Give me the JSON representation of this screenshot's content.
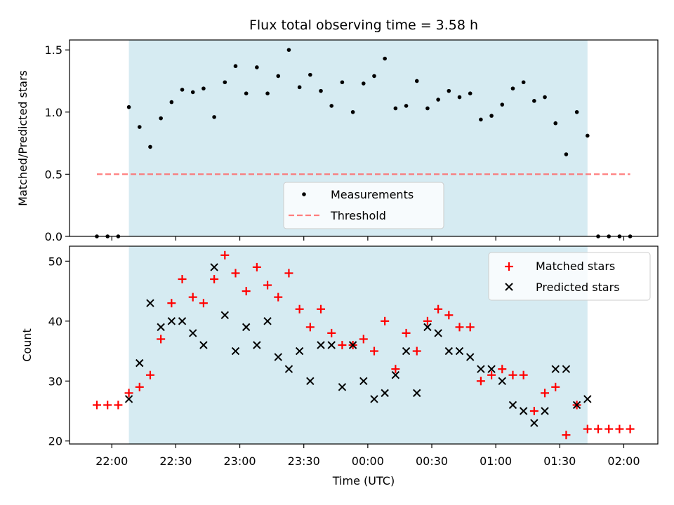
{
  "chart_data": {
    "type": "scatter",
    "title": "Flux total observing time = 3.58 h",
    "xlabel": "Time (UTC)",
    "x_ticks": [
      "22:00",
      "22:30",
      "23:00",
      "23:30",
      "00:00",
      "00:30",
      "01:00",
      "01:30",
      "02:00"
    ],
    "observing_window": {
      "start": "22:08",
      "end": "01:43",
      "color": "#add8e6"
    },
    "top_panel": {
      "ylabel": "Matched/Predicted stars",
      "ylim": [
        0,
        1.58
      ],
      "yticks": [
        "0.0",
        "0.5",
        "1.0",
        "1.5"
      ],
      "threshold": {
        "name": "Threshold",
        "value": 0.5,
        "color": "#ff6666"
      },
      "legend": {
        "entries": [
          "Measurements",
          "Threshold"
        ],
        "placement": "lower-center"
      },
      "series": [
        {
          "name": "Measurements",
          "color": "#000000",
          "times": [
            "21:53",
            "21:58",
            "22:03",
            "22:08",
            "22:13",
            "22:18",
            "22:23",
            "22:28",
            "22:33",
            "22:38",
            "22:43",
            "22:48",
            "22:53",
            "22:58",
            "23:03",
            "23:08",
            "23:13",
            "23:18",
            "23:23",
            "23:28",
            "23:33",
            "23:38",
            "23:43",
            "23:48",
            "23:53",
            "23:58",
            "00:03",
            "00:08",
            "00:13",
            "00:18",
            "00:23",
            "00:28",
            "00:33",
            "00:38",
            "00:43",
            "00:48",
            "00:53",
            "00:58",
            "01:03",
            "01:08",
            "01:13",
            "01:18",
            "01:23",
            "01:28",
            "01:33",
            "01:38",
            "01:43",
            "01:48",
            "01:53",
            "01:58",
            "02:03"
          ],
          "values": [
            0,
            0,
            0,
            1.04,
            0.88,
            0.72,
            0.95,
            1.08,
            1.18,
            1.16,
            1.19,
            0.96,
            1.24,
            1.37,
            1.15,
            1.36,
            1.15,
            1.29,
            1.5,
            1.2,
            1.3,
            1.17,
            1.05,
            1.24,
            1.0,
            1.23,
            1.29,
            1.43,
            1.03,
            1.05,
            1.25,
            1.03,
            1.1,
            1.17,
            1.12,
            1.15,
            0.94,
            0.97,
            1.06,
            1.19,
            1.24,
            1.09,
            1.12,
            0.91,
            0.66,
            1.0,
            0.81,
            0,
            0,
            0,
            0
          ]
        }
      ]
    },
    "bottom_panel": {
      "ylabel": "Count",
      "ylim": [
        19.5,
        52.5
      ],
      "yticks": [
        "20",
        "30",
        "40",
        "50"
      ],
      "legend": {
        "entries": [
          "Matched stars",
          "Predicted stars"
        ],
        "placement": "top-right"
      },
      "series": [
        {
          "name": "Matched stars",
          "marker": "plus",
          "color": "#ff0000",
          "times": [
            "21:53",
            "21:58",
            "22:03",
            "22:08",
            "22:13",
            "22:18",
            "22:23",
            "22:28",
            "22:33",
            "22:38",
            "22:43",
            "22:48",
            "22:53",
            "22:58",
            "23:03",
            "23:08",
            "23:13",
            "23:18",
            "23:23",
            "23:28",
            "23:33",
            "23:38",
            "23:43",
            "23:48",
            "23:53",
            "23:58",
            "00:03",
            "00:08",
            "00:13",
            "00:18",
            "00:23",
            "00:28",
            "00:33",
            "00:38",
            "00:43",
            "00:48",
            "00:53",
            "00:58",
            "01:03",
            "01:08",
            "01:13",
            "01:18",
            "01:23",
            "01:28",
            "01:33",
            "01:38",
            "01:43",
            "01:48",
            "01:53",
            "01:58",
            "02:03"
          ],
          "values": [
            26,
            26,
            26,
            28,
            29,
            31,
            37,
            43,
            47,
            44,
            43,
            47,
            51,
            48,
            45,
            49,
            46,
            44,
            48,
            42,
            39,
            42,
            38,
            36,
            36,
            37,
            35,
            40,
            32,
            38,
            35,
            40,
            42,
            41,
            39,
            39,
            30,
            31,
            32,
            31,
            31,
            25,
            28,
            29,
            21,
            26,
            22,
            22,
            22,
            22,
            22
          ]
        },
        {
          "name": "Predicted stars",
          "marker": "x",
          "color": "#000000",
          "times": [
            "22:08",
            "22:13",
            "22:18",
            "22:23",
            "22:28",
            "22:33",
            "22:38",
            "22:43",
            "22:48",
            "22:53",
            "22:58",
            "23:03",
            "23:08",
            "23:13",
            "23:18",
            "23:23",
            "23:28",
            "23:33",
            "23:38",
            "23:43",
            "23:48",
            "23:53",
            "23:58",
            "00:03",
            "00:08",
            "00:13",
            "00:18",
            "00:23",
            "00:28",
            "00:33",
            "00:38",
            "00:43",
            "00:48",
            "00:53",
            "00:58",
            "01:03",
            "01:08",
            "01:13",
            "01:18",
            "01:23",
            "01:28",
            "01:33",
            "01:38",
            "01:43"
          ],
          "values": [
            27,
            33,
            43,
            39,
            40,
            40,
            38,
            36,
            49,
            41,
            35,
            39,
            36,
            40,
            34,
            32,
            35,
            30,
            36,
            36,
            29,
            36,
            30,
            27,
            28,
            31,
            35,
            28,
            39,
            38,
            35,
            35,
            34,
            32,
            32,
            30,
            26,
            25,
            23,
            25,
            32,
            32,
            26,
            27
          ]
        }
      ]
    }
  }
}
